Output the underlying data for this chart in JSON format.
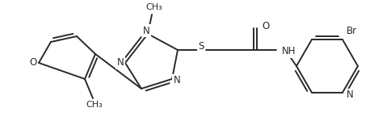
{
  "bg_color": "#ffffff",
  "line_color": "#2a2a2a",
  "line_width": 1.4,
  "font_size": 8.5,
  "figsize": [
    4.64,
    1.7
  ],
  "dpi": 100,
  "xlim": [
    0,
    464
  ],
  "ylim": [
    0,
    170
  ]
}
